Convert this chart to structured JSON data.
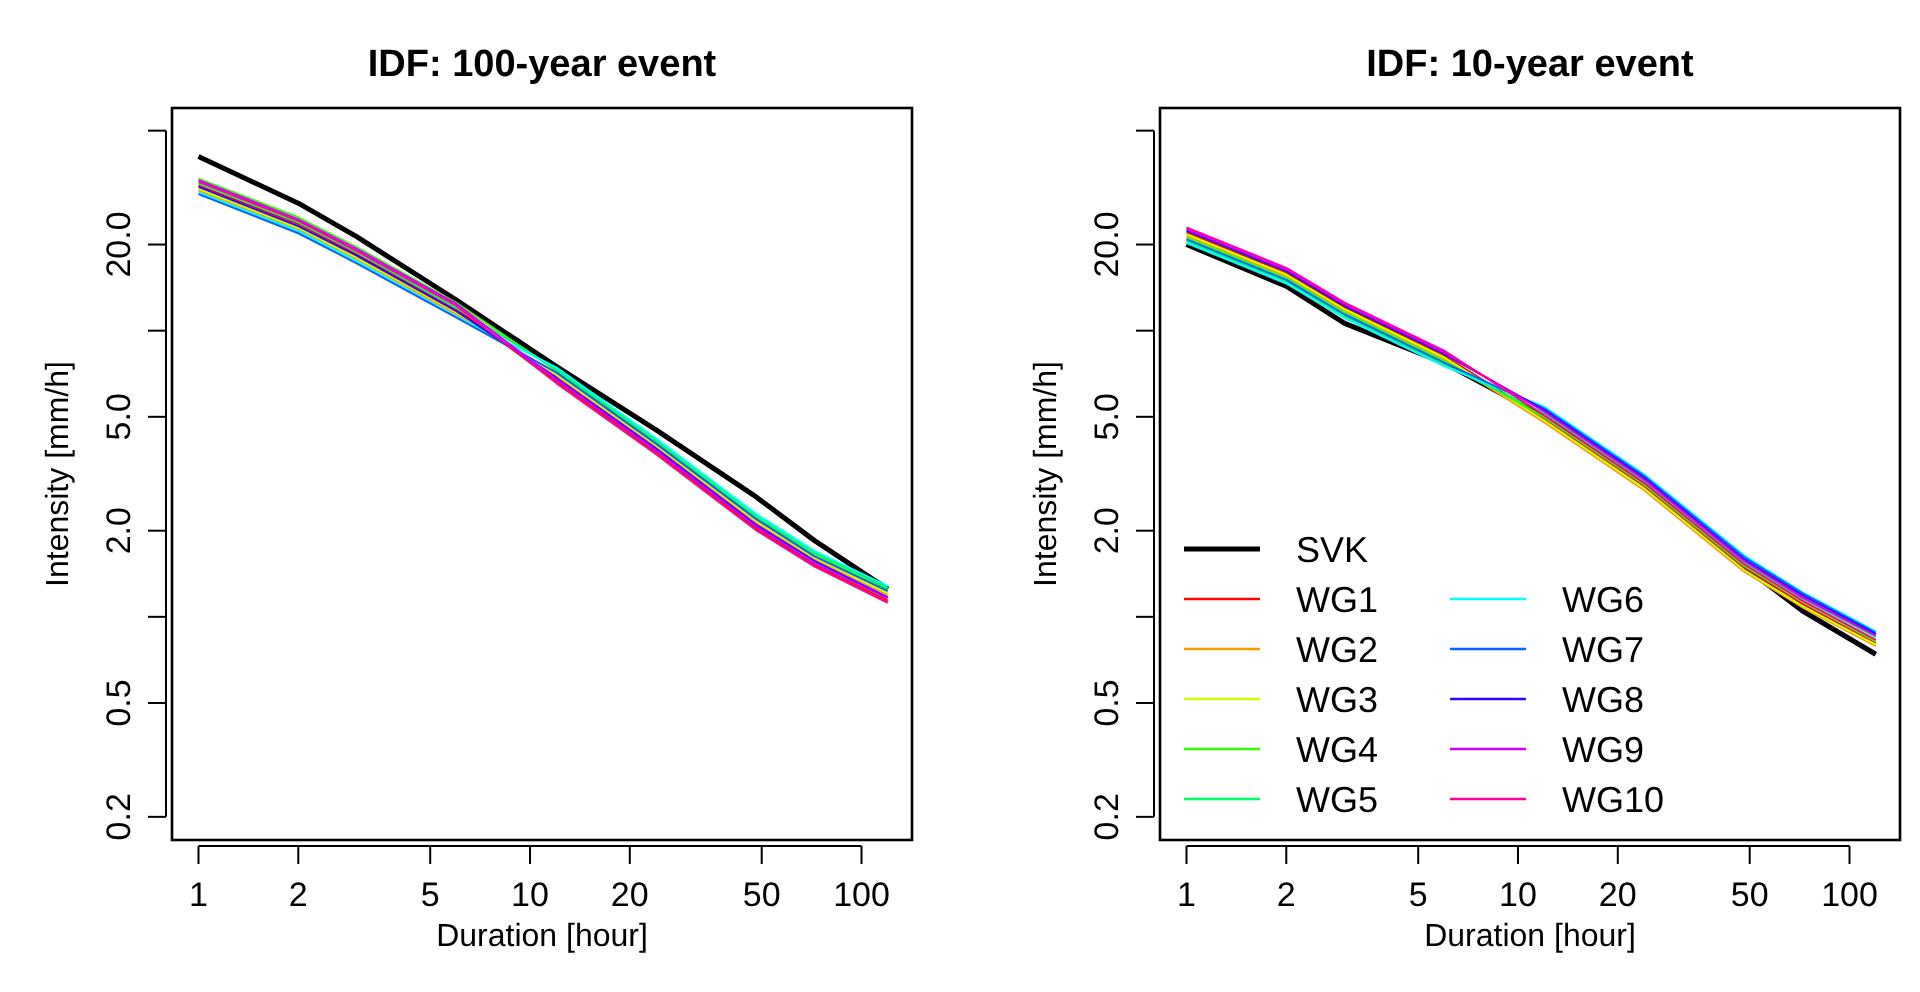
{
  "chart_data": [
    {
      "type": "line",
      "title": "IDF: 100-year event",
      "xlabel": "Duration [hour]",
      "ylabel": "Intensity [mm/h]",
      "log": "xy",
      "grid": false,
      "legend": false,
      "xlim": [
        0.832,
        142
      ],
      "ylim": [
        0.166,
        60
      ],
      "xticks": [
        1,
        2,
        5,
        10,
        20,
        50,
        100
      ],
      "yticks": [
        {
          "value": 50,
          "label": null
        },
        {
          "value": 20,
          "label": "20.0"
        },
        {
          "value": 10,
          "label": null
        },
        {
          "value": 5,
          "label": "5.0"
        },
        {
          "value": 2,
          "label": "2.0"
        },
        {
          "value": 1,
          "label": null
        },
        {
          "value": 0.5,
          "label": "0.5"
        },
        {
          "value": 0.2,
          "label": "0.2"
        }
      ],
      "x": [
        1,
        2,
        3,
        6,
        12,
        24,
        48,
        72,
        120
      ],
      "series": [
        {
          "color": "#000000",
          "values": [
            40.6,
            27.9,
            21.3,
            12.8,
            7.5,
            4.5,
            2.63,
            1.85,
            1.25
          ]
        },
        {
          "color": "#ff0000",
          "values": [
            32.2,
            23.6,
            18.5,
            11.9,
            6.66,
            3.76,
            2.04,
            1.52,
            1.14
          ]
        },
        {
          "color": "#ff9900",
          "values": [
            30.9,
            22.6,
            17.8,
            11.4,
            6.95,
            3.92,
            2.13,
            1.59,
            1.19
          ]
        },
        {
          "color": "#ccff00",
          "values": [
            31.3,
            22.9,
            18.0,
            11.6,
            7.05,
            3.98,
            2.17,
            1.61,
            1.21
          ]
        },
        {
          "color": "#33ff00",
          "values": [
            34.0,
            24.9,
            19.6,
            12.5,
            7.25,
            4.09,
            2.23,
            1.66,
            1.24
          ]
        },
        {
          "color": "#00ff66",
          "values": [
            32.7,
            23.9,
            18.8,
            12.0,
            7.34,
            4.14,
            2.26,
            1.68,
            1.26
          ]
        },
        {
          "color": "#00ffff",
          "values": [
            30.4,
            22.3,
            17.5,
            11.2,
            7.44,
            4.2,
            2.29,
            1.7,
            1.28
          ]
        },
        {
          "color": "#0066ff",
          "values": [
            30.0,
            21.9,
            17.2,
            11.1,
            7.15,
            4.03,
            2.2,
            1.63,
            1.23
          ]
        },
        {
          "color": "#3300ff",
          "values": [
            31.8,
            23.2,
            18.3,
            11.7,
            6.85,
            3.87,
            2.1,
            1.57,
            1.17
          ]
        },
        {
          "color": "#cc00ff",
          "values": [
            33.6,
            24.5,
            19.3,
            12.4,
            6.76,
            3.81,
            2.07,
            1.54,
            1.16
          ]
        },
        {
          "color": "#ff0099",
          "values": [
            33.1,
            24.2,
            19.0,
            12.2,
            6.56,
            3.7,
            2.01,
            1.5,
            1.12
          ]
        }
      ]
    },
    {
      "type": "line",
      "title": "IDF: 10-year event",
      "xlabel": "Duration [hour]",
      "ylabel": "Intensity [mm/h]",
      "log": "xy",
      "grid": false,
      "legend": "bottom left",
      "xlim": [
        0.832,
        142
      ],
      "ylim": [
        0.166,
        60
      ],
      "xticks": [
        1,
        2,
        5,
        10,
        20,
        50,
        100
      ],
      "yticks": [
        {
          "value": 50,
          "label": null
        },
        {
          "value": 20,
          "label": "20.0"
        },
        {
          "value": 10,
          "label": null
        },
        {
          "value": 5,
          "label": "5.0"
        },
        {
          "value": 2,
          "label": "2.0"
        },
        {
          "value": 1,
          "label": null
        },
        {
          "value": 0.5,
          "label": "0.5"
        },
        {
          "value": 0.2,
          "label": "0.2"
        }
      ],
      "x": [
        1,
        2,
        3,
        6,
        12,
        24,
        48,
        72,
        120
      ],
      "series": [
        {
          "name": "SVK",
          "color": "#000000",
          "values": [
            20.0,
            14.3,
            10.6,
            7.7,
            5.0,
            2.93,
            1.5,
            1.05,
            0.74
          ]
        },
        {
          "name": "WG1",
          "color": "#ff0000",
          "values": [
            22.05,
            15.93,
            12.05,
            8.17,
            4.92,
            2.86,
            1.49,
            1.11,
            0.81
          ]
        },
        {
          "name": "WG2",
          "color": "#ff9900",
          "values": [
            21.45,
            15.49,
            11.72,
            7.94,
            4.78,
            2.77,
            1.44,
            1.08,
            0.79
          ]
        },
        {
          "name": "WG3",
          "color": "#ccff00",
          "values": [
            21.75,
            15.71,
            11.88,
            8.06,
            4.85,
            2.81,
            1.46,
            1.09,
            0.8
          ]
        },
        {
          "name": "WG4",
          "color": "#33ff00",
          "values": [
            21.15,
            15.27,
            11.55,
            7.83,
            4.99,
            2.9,
            1.51,
            1.13,
            0.82
          ]
        },
        {
          "name": "WG5",
          "color": "#00ff66",
          "values": [
            20.54,
            14.84,
            11.22,
            7.61,
            5.14,
            2.98,
            1.55,
            1.16,
            0.85
          ]
        },
        {
          "name": "WG6",
          "color": "#00ffff",
          "values": [
            20.24,
            14.62,
            11.06,
            7.5,
            5.42,
            3.15,
            1.64,
            1.22,
            0.89
          ]
        },
        {
          "name": "WG7",
          "color": "#0066ff",
          "values": [
            20.84,
            15.05,
            11.39,
            7.72,
            5.35,
            3.11,
            1.62,
            1.21,
            0.88
          ]
        },
        {
          "name": "WG8",
          "color": "#3300ff",
          "values": [
            22.36,
            16.15,
            12.21,
            8.28,
            5.28,
            3.06,
            1.59,
            1.19,
            0.87
          ]
        },
        {
          "name": "WG9",
          "color": "#cc00ff",
          "values": [
            22.66,
            16.36,
            12.38,
            8.39,
            5.21,
            3.02,
            1.57,
            1.17,
            0.86
          ]
        },
        {
          "name": "WG10",
          "color": "#ff0099",
          "values": [
            22.96,
            16.58,
            12.54,
            8.5,
            5.06,
            2.94,
            1.53,
            1.14,
            0.83
          ]
        }
      ]
    }
  ]
}
